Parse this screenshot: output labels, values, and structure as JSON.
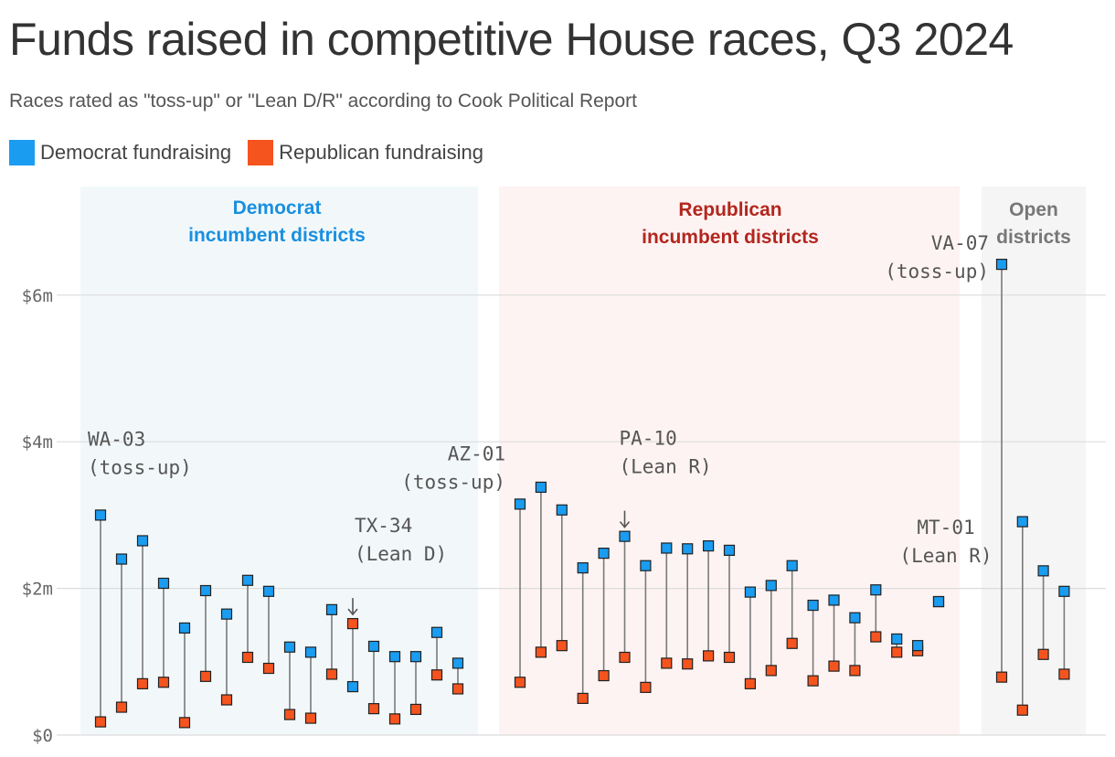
{
  "title": "Funds raised in competitive House races, Q3 2024",
  "subtitle": "Races rated as \"toss-up\" or \"Lean D/R\" according to Cook Political Report",
  "legend": {
    "dem_label": "Democrat fundraising",
    "rep_label": "Republican fundraising"
  },
  "colors": {
    "dem": "#1a9cf0",
    "rep": "#f5541f",
    "dem_panel": "#f2f8fa",
    "rep_panel": "#fdf3f2",
    "open_panel": "#f5f5f5",
    "dem_text": "#1a8fe0",
    "rep_text": "#b3261e",
    "open_text": "#777777"
  },
  "chart_data": {
    "type": "scatter",
    "subtype": "dumbbell",
    "ylim": [
      0,
      6.5
    ],
    "yticks": [
      {
        "value": 0,
        "label": "$0"
      },
      {
        "value": 2,
        "label": "$2m"
      },
      {
        "value": 4,
        "label": "$4m"
      },
      {
        "value": 6,
        "label": "$6m"
      }
    ],
    "grid": "horizontal",
    "groups": [
      {
        "label_line1": "Democrat",
        "label_line2": "incumbent districts",
        "style": "dem",
        "races": [
          {
            "dem": 3.0,
            "rep": 0.18
          },
          {
            "dem": 2.4,
            "rep": 0.38
          },
          {
            "dem": 2.65,
            "rep": 0.7
          },
          {
            "dem": 2.07,
            "rep": 0.72
          },
          {
            "dem": 1.46,
            "rep": 0.17
          },
          {
            "dem": 1.97,
            "rep": 0.8
          },
          {
            "dem": 1.65,
            "rep": 0.48
          },
          {
            "dem": 2.11,
            "rep": 1.06
          },
          {
            "dem": 1.96,
            "rep": 0.91
          },
          {
            "dem": 1.2,
            "rep": 0.28
          },
          {
            "dem": 1.13,
            "rep": 0.23
          },
          {
            "dem": 1.71,
            "rep": 0.83
          },
          {
            "dem": 0.66,
            "rep": 1.52
          },
          {
            "dem": 1.21,
            "rep": 0.36
          },
          {
            "dem": 1.07,
            "rep": 0.22
          },
          {
            "dem": 1.07,
            "rep": 0.35
          },
          {
            "dem": 1.4,
            "rep": 0.82
          },
          {
            "dem": 0.98,
            "rep": 0.63
          }
        ]
      },
      {
        "label_line1": "Republican",
        "label_line2": "incumbent districts",
        "style": "rep",
        "races": [
          {
            "dem": 3.15,
            "rep": 0.72
          },
          {
            "dem": 3.38,
            "rep": 1.13
          },
          {
            "dem": 3.07,
            "rep": 1.22
          },
          {
            "dem": 2.28,
            "rep": 0.5
          },
          {
            "dem": 2.48,
            "rep": 0.81
          },
          {
            "dem": 2.71,
            "rep": 1.06
          },
          {
            "dem": 2.31,
            "rep": 0.65
          },
          {
            "dem": 2.55,
            "rep": 0.98
          },
          {
            "dem": 2.54,
            "rep": 0.97
          },
          {
            "dem": 2.58,
            "rep": 1.08
          },
          {
            "dem": 2.52,
            "rep": 1.06
          },
          {
            "dem": 1.95,
            "rep": 0.7
          },
          {
            "dem": 2.04,
            "rep": 0.88
          },
          {
            "dem": 2.31,
            "rep": 1.25
          },
          {
            "dem": 1.77,
            "rep": 0.74
          },
          {
            "dem": 1.84,
            "rep": 0.94
          },
          {
            "dem": 1.6,
            "rep": 0.88
          },
          {
            "dem": 1.98,
            "rep": 1.34
          },
          {
            "dem": 1.31,
            "rep": 1.13
          },
          {
            "dem": 1.22,
            "rep": 1.15
          },
          {
            "dem": 1.82,
            "rep": 1.82
          }
        ]
      },
      {
        "label_line1": "Open",
        "label_line2": "districts",
        "style": "open",
        "races": [
          {
            "dem": 6.42,
            "rep": 0.79
          },
          {
            "dem": 2.91,
            "rep": 0.34
          },
          {
            "dem": 2.24,
            "rep": 1.1
          },
          {
            "dem": 1.96,
            "rep": 0.83
          }
        ]
      }
    ],
    "annotations": [
      {
        "line1": "WA-03",
        "line2": "(toss-up)",
        "group": 0,
        "race": 0
      },
      {
        "line1": "TX-34",
        "line2": "(Lean D)",
        "group": 0,
        "race": 12
      },
      {
        "line1": "AZ-01",
        "line2": "(toss-up)",
        "group": 1,
        "race": 0
      },
      {
        "line1": "PA-10",
        "line2": "(Lean R)",
        "group": 1,
        "race": 5
      },
      {
        "line1": "MT-01",
        "line2": "(Lean R)",
        "group": 1,
        "race": 20
      },
      {
        "line1": "VA-07",
        "line2": "(toss-up)",
        "group": 2,
        "race": 0
      }
    ]
  }
}
